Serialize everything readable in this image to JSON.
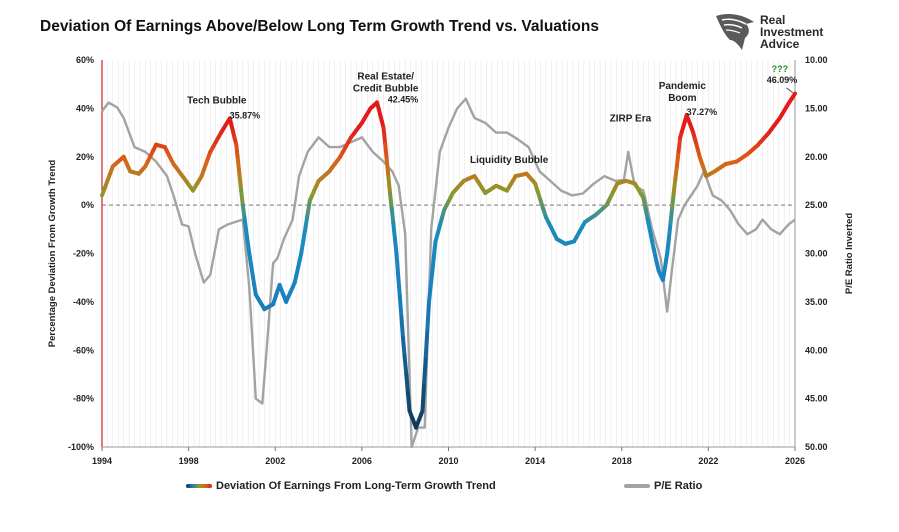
{
  "title": "Deviation Of Earnings Above/Below Long Term Growth Trend vs. Valuations",
  "logo": {
    "line1": "Real",
    "line2": "Investment",
    "line3": "Advice"
  },
  "legend": {
    "series1": "Deviation Of Earnings From Long-Term Growth Trend",
    "series2": "P/E Ratio"
  },
  "colors": {
    "gray": "#a3a3a3",
    "red": "#e31b1b",
    "orange": "#d9641a",
    "olive": "#8c9a2a",
    "blue": "#1b7fbf",
    "navy": "#0e3552"
  },
  "chart_data": {
    "type": "line",
    "ylabel": "Percentage Deviation From Growth Trend",
    "y2label": "P/E Ratio Inverted",
    "xlim": [
      1994,
      2026
    ],
    "ylim": [
      -100,
      60
    ],
    "y2lim": [
      10,
      50
    ],
    "y2_inverted": true,
    "x_ticks": [
      "1994",
      "1998",
      "2002",
      "2006",
      "2010",
      "2014",
      "2018",
      "2022",
      "2026"
    ],
    "y_ticks": [
      "60%",
      "40%",
      "20%",
      "0%",
      "-20%",
      "-40%",
      "-60%",
      "-80%",
      "-100%"
    ],
    "y2_ticks": [
      "10.00",
      "15.00",
      "20.00",
      "25.00",
      "30.00",
      "35.00",
      "40.00",
      "45.00",
      "50.00"
    ],
    "annotations": [
      {
        "lines": [
          "Tech Bubble"
        ],
        "x": 1999.3,
        "y": 42
      },
      {
        "lines": [
          "35.87%"
        ],
        "x": 2000.6,
        "y": 35.87
      },
      {
        "lines": [
          "Real Estate/",
          "Credit Bubble"
        ],
        "x": 2007.1,
        "y": 52
      },
      {
        "lines": [
          "42.45%"
        ],
        "x": 2007.9,
        "y": 42.45
      },
      {
        "lines": [
          "Liquidity Bubble"
        ],
        "x": 2012.8,
        "y": 17.5
      },
      {
        "lines": [
          "ZIRP Era"
        ],
        "x": 2018.4,
        "y": 34.5
      },
      {
        "lines": [
          "Pandemic",
          "Boom"
        ],
        "x": 2020.8,
        "y": 48
      },
      {
        "lines": [
          "37.27%"
        ],
        "x": 2021.7,
        "y": 37.27
      },
      {
        "lines": [
          "???"
        ],
        "x": 2025.3,
        "y": 55
      },
      {
        "lines": [
          "46.09%"
        ],
        "x": 2025.4,
        "y": 50.5
      }
    ],
    "series": [
      {
        "name": "Deviation Of Earnings From Long-Term Growth Trend",
        "axis": "left",
        "x": [
          1994,
          1994.5,
          1995,
          1995.3,
          1995.7,
          1996,
          1996.5,
          1996.9,
          1997.3,
          1997.8,
          1998.2,
          1998.6,
          1999,
          1999.5,
          1999.9,
          2000.2,
          2000.5,
          2000.8,
          2001.1,
          2001.5,
          2001.9,
          2002.2,
          2002.5,
          2002.9,
          2003.2,
          2003.6,
          2004,
          2004.5,
          2005,
          2005.5,
          2006,
          2006.4,
          2006.7,
          2007,
          2007.3,
          2007.6,
          2007.9,
          2008.2,
          2008.5,
          2008.8,
          2009.1,
          2009.4,
          2009.8,
          2010.2,
          2010.7,
          2011.2,
          2011.7,
          2012.2,
          2012.7,
          2013.1,
          2013.6,
          2014,
          2014.5,
          2015,
          2015.4,
          2015.8,
          2016.3,
          2016.8,
          2017.3,
          2017.8,
          2018.2,
          2018.6,
          2019,
          2019.4,
          2019.7,
          2019.9,
          2020.1,
          2020.4,
          2020.7,
          2021.0,
          2021.3,
          2021.6,
          2021.9,
          2022.3,
          2022.8,
          2023.3,
          2023.8,
          2024.3,
          2024.8,
          2025.3,
          2025.7,
          2026
        ],
        "values": [
          4,
          16,
          20,
          14,
          13,
          16,
          25,
          24,
          17,
          11,
          6,
          12,
          22,
          30,
          35.87,
          25,
          0,
          -20,
          -37,
          -43,
          -41,
          -33,
          -40,
          -32,
          -20,
          2,
          10,
          14,
          20,
          28,
          34,
          40,
          42.45,
          32,
          5,
          -20,
          -55,
          -85,
          -92,
          -85,
          -40,
          -15,
          -2,
          5,
          10,
          12,
          5,
          8,
          6,
          12,
          13,
          9,
          -5,
          -14,
          -16,
          -15,
          -7,
          -4,
          0,
          9,
          10,
          9,
          3,
          -15,
          -27,
          -31,
          -20,
          5,
          28,
          37.27,
          30,
          20,
          12,
          14,
          17,
          18,
          21,
          25,
          30,
          36,
          42,
          46.09
        ]
      },
      {
        "name": "P/E Ratio",
        "axis": "right",
        "x": [
          1994,
          1994.3,
          1994.7,
          1995,
          1995.5,
          1996,
          1996.5,
          1997,
          1997.3,
          1997.7,
          1998,
          1998.3,
          1998.7,
          1999,
          1999.4,
          1999.8,
          2000.2,
          2000.5,
          2000.8,
          2001.1,
          2001.4,
          2001.6,
          2001.9,
          2002.1,
          2002.4,
          2002.8,
          2003.1,
          2003.5,
          2004,
          2004.5,
          2005,
          2005.5,
          2006,
          2006.5,
          2007,
          2007.4,
          2007.7,
          2008,
          2008.3,
          2008.6,
          2008.9,
          2009.2,
          2009.6,
          2010,
          2010.4,
          2010.8,
          2011.2,
          2011.7,
          2012.2,
          2012.7,
          2013.2,
          2013.7,
          2014.2,
          2014.7,
          2015.2,
          2015.7,
          2016.2,
          2016.7,
          2017.2,
          2017.7,
          2018.1,
          2018.3,
          2018.6,
          2019,
          2019.4,
          2019.8,
          2020.1,
          2020.3,
          2020.6,
          2020.9,
          2021.2,
          2021.5,
          2021.8,
          2022.2,
          2022.6,
          2023,
          2023.4,
          2023.8,
          2024.2,
          2024.5,
          2024.9,
          2025.3,
          2025.7,
          2026
        ],
        "values": [
          15.3,
          14.4,
          14.9,
          16,
          19,
          19.5,
          20.5,
          22,
          24,
          27,
          27.2,
          30,
          33,
          32.2,
          27.5,
          27,
          26.7,
          26.5,
          33.5,
          45,
          45.5,
          40,
          31,
          30.5,
          28.5,
          26.5,
          22,
          19.5,
          18,
          19,
          19,
          18.5,
          18,
          19.5,
          20.5,
          21.5,
          23,
          28,
          50,
          48,
          48,
          27.5,
          19.5,
          17,
          15,
          14,
          16,
          16.5,
          17.5,
          17.5,
          18.2,
          19,
          21.5,
          22.5,
          23.5,
          24,
          23.8,
          22.8,
          22,
          22.5,
          22.4,
          19.5,
          23,
          23.5,
          27.5,
          30.5,
          36,
          32,
          26.5,
          25,
          24,
          23,
          21.5,
          24,
          24.5,
          25.5,
          27,
          28,
          27.5,
          26.5,
          27.5,
          28,
          27,
          26.5
        ]
      }
    ]
  }
}
